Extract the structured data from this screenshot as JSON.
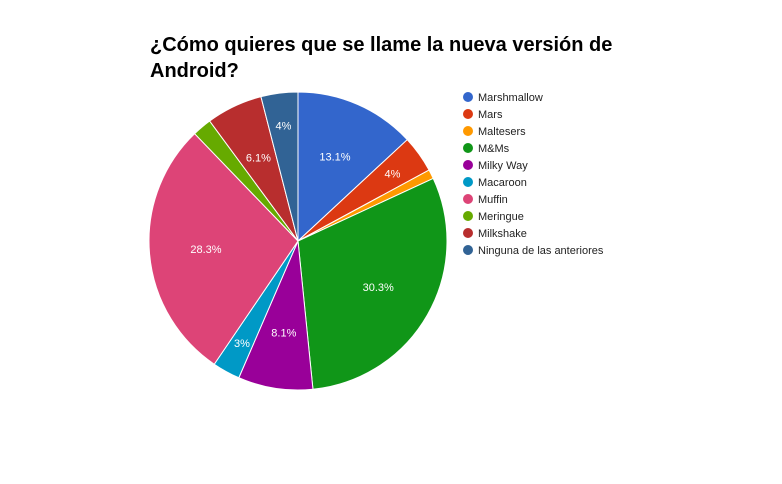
{
  "chart_data": {
    "type": "pie",
    "title_lines": [
      "¿Cómo quieres que se llame la nueva versión de",
      "Android?"
    ],
    "legend_position": "right",
    "slices": [
      {
        "name": "Marshmallow",
        "value": 13.1,
        "label": "13.1%",
        "color": "#3366cc"
      },
      {
        "name": "Mars",
        "value": 4.0,
        "label": "4%",
        "color": "#dc3912"
      },
      {
        "name": "Maltesers",
        "value": 1.0,
        "label": "",
        "color": "#ff9900"
      },
      {
        "name": "M&Ms",
        "value": 30.3,
        "label": "30.3%",
        "color": "#109618"
      },
      {
        "name": "Milky Way",
        "value": 8.1,
        "label": "8.1%",
        "color": "#990099"
      },
      {
        "name": "Macaroon",
        "value": 3.0,
        "label": "3%",
        "color": "#0099c6"
      },
      {
        "name": "Muffin",
        "value": 28.3,
        "label": "28.3%",
        "color": "#dd4477"
      },
      {
        "name": "Meringue",
        "value": 2.1,
        "label": "",
        "color": "#66aa00"
      },
      {
        "name": "Milkshake",
        "value": 6.1,
        "label": "6.1%",
        "color": "#b82e2e"
      },
      {
        "name": "Ninguna de las anteriores",
        "value": 4.0,
        "label": "4%",
        "color": "#316395"
      }
    ]
  }
}
